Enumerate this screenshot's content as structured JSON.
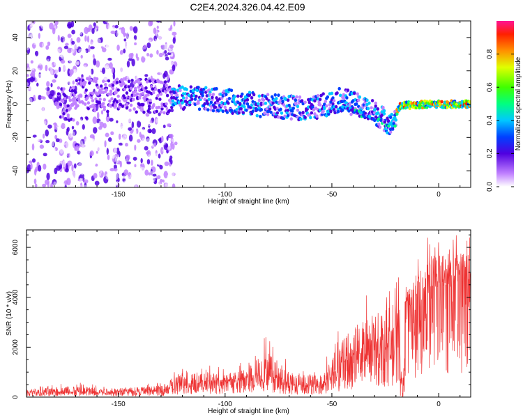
{
  "title": "C2E4.2024.326.04.42.E09",
  "chart_data": [
    {
      "type": "heatmap",
      "xlabel": "Height of straight line (km)",
      "ylabel": "Frequency (Hz)",
      "xlim": [
        -193,
        15
      ],
      "ylim": [
        -50,
        50
      ],
      "xticks": [
        -150,
        -100,
        -50,
        0
      ],
      "yticks": [
        -40,
        -20,
        0,
        20,
        40
      ],
      "colorbar": {
        "label": "Normalized spectral amplitude",
        "range": [
          0,
          1
        ],
        "ticks": [
          "0.0",
          "0.2",
          "0.4",
          "0.6",
          "0.8"
        ]
      },
      "noise_region_x": [
        -193,
        -123
      ],
      "signal_track": [
        {
          "x": -170,
          "y": 6
        },
        {
          "x": -140,
          "y": 5
        },
        {
          "x": -120,
          "y": 4
        },
        {
          "x": -100,
          "y": 2
        },
        {
          "x": -80,
          "y": -1
        },
        {
          "x": -60,
          "y": -3
        },
        {
          "x": -45,
          "y": 3
        },
        {
          "x": -30,
          "y": -5
        },
        {
          "x": -22,
          "y": -12
        },
        {
          "x": -18,
          "y": -1
        },
        {
          "x": -5,
          "y": 0
        },
        {
          "x": 15,
          "y": 0
        }
      ]
    },
    {
      "type": "line",
      "xlabel": "Height of straight line (km)",
      "ylabel": "SNR (10 * v/v)",
      "xlim": [
        -193,
        15
      ],
      "ylim": [
        0,
        6700
      ],
      "xticks": [
        -150,
        -100,
        -50,
        0
      ],
      "yticks": [
        0,
        2000,
        4000,
        6000
      ],
      "series": [
        {
          "color": "#ee3333",
          "envelope": [
            {
              "x": -193,
              "mean": 180,
              "max": 380
            },
            {
              "x": -170,
              "mean": 200,
              "max": 650
            },
            {
              "x": -150,
              "mean": 220,
              "max": 450
            },
            {
              "x": -130,
              "mean": 250,
              "max": 600
            },
            {
              "x": -120,
              "mean": 500,
              "max": 1400
            },
            {
              "x": -100,
              "mean": 600,
              "max": 1200
            },
            {
              "x": -90,
              "mean": 700,
              "max": 1500
            },
            {
              "x": -80,
              "mean": 900,
              "max": 2600
            },
            {
              "x": -70,
              "mean": 500,
              "max": 1400
            },
            {
              "x": -55,
              "mean": 400,
              "max": 1200
            },
            {
              "x": -48,
              "mean": 1000,
              "max": 2500
            },
            {
              "x": -40,
              "mean": 1600,
              "max": 4000
            },
            {
              "x": -30,
              "mean": 1800,
              "max": 4300
            },
            {
              "x": -18,
              "mean": 2500,
              "max": 5000
            },
            {
              "x": -15,
              "mean": 3500,
              "max": 4800
            },
            {
              "x": -5,
              "mean": 4200,
              "max": 6600
            },
            {
              "x": 5,
              "mean": 4500,
              "max": 6700
            },
            {
              "x": 15,
              "mean": 4700,
              "max": 6600
            }
          ]
        }
      ]
    }
  ]
}
